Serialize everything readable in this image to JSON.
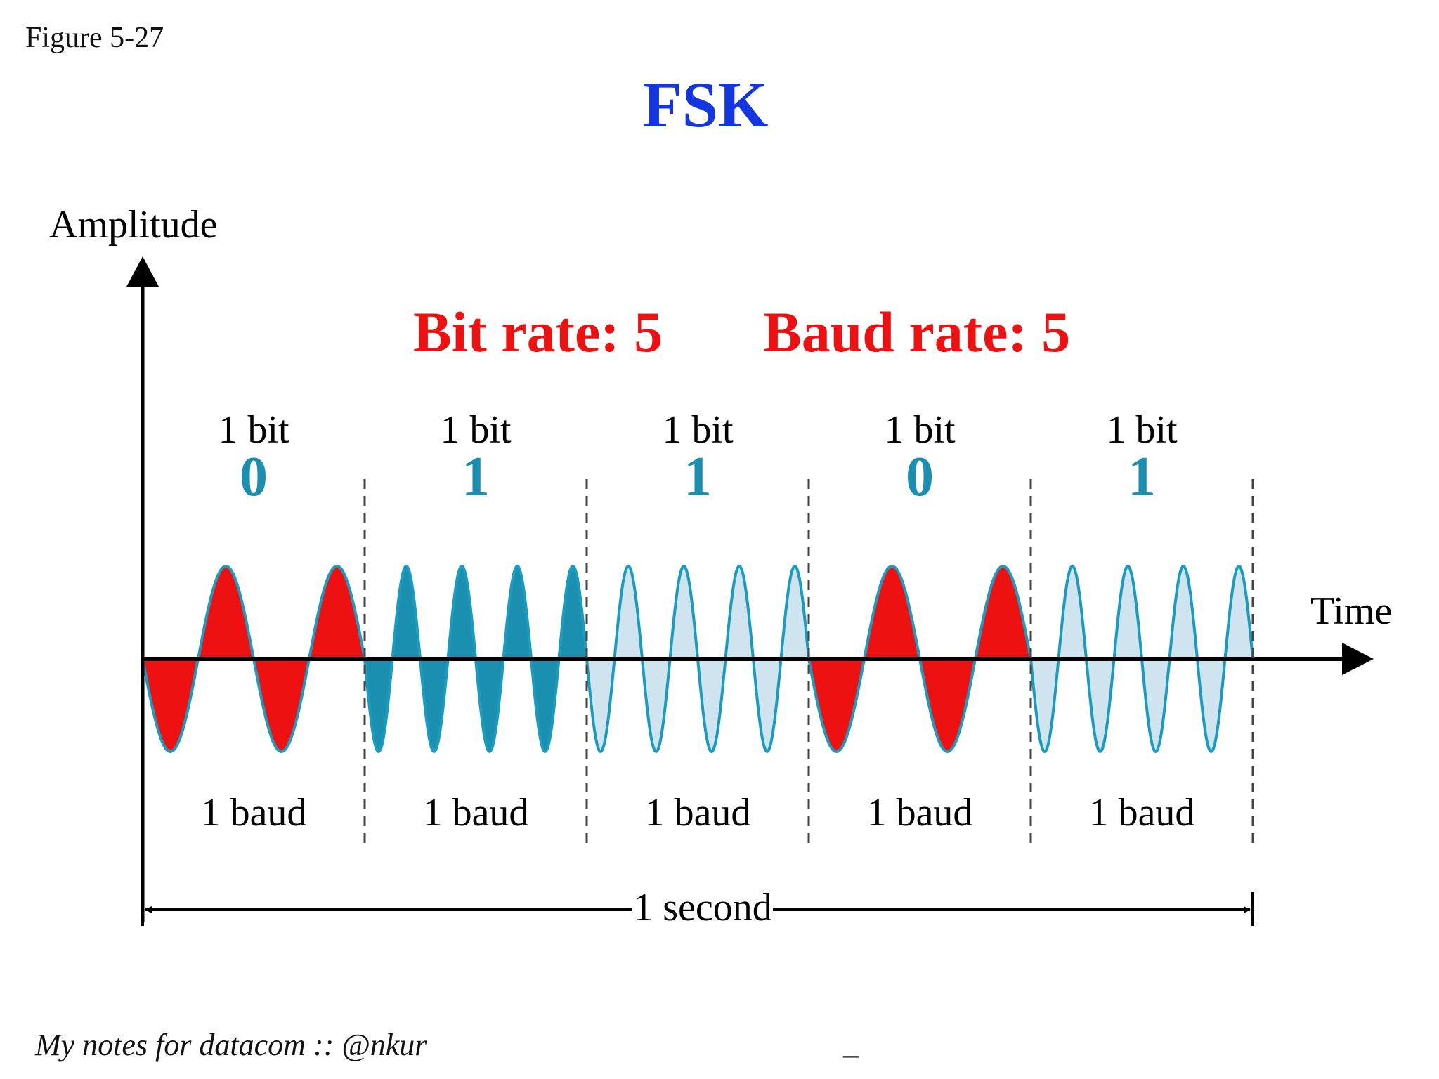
{
  "figure_label": "Figure 5-27",
  "title": "FSK",
  "footer": {
    "note": "My notes for datacom :: @nkur",
    "mark": "_"
  },
  "axes": {
    "y_label": "Amplitude",
    "x_label": "Time"
  },
  "rates": {
    "bit_rate": "Bit rate: 5",
    "baud_rate": "Baud rate: 5"
  },
  "segments": [
    {
      "bit_label": "1 bit",
      "bit_value": "0",
      "baud_label": "1 baud",
      "cycles": 2,
      "fill": "#ee1111"
    },
    {
      "bit_label": "1 bit",
      "bit_value": "1",
      "baud_label": "1 baud",
      "cycles": 4,
      "fill": "#1a8fb0"
    },
    {
      "bit_label": "1 bit",
      "bit_value": "1",
      "baud_label": "1 baud",
      "cycles": 4,
      "fill": "#cfe4ee"
    },
    {
      "bit_label": "1 bit",
      "bit_value": "0",
      "baud_label": "1 baud",
      "cycles": 2,
      "fill": "#ee1111"
    },
    {
      "bit_label": "1 bit",
      "bit_value": "1",
      "baud_label": "1 baud",
      "cycles": 4,
      "fill": "#cfe4ee"
    }
  ],
  "duration_label": "1 second",
  "colors": {
    "title": "#1336e0",
    "rates": "#ee1111",
    "bit_value": "#1a8fb0",
    "wave_stroke": "#1a9cc0",
    "axis": "#000000"
  }
}
